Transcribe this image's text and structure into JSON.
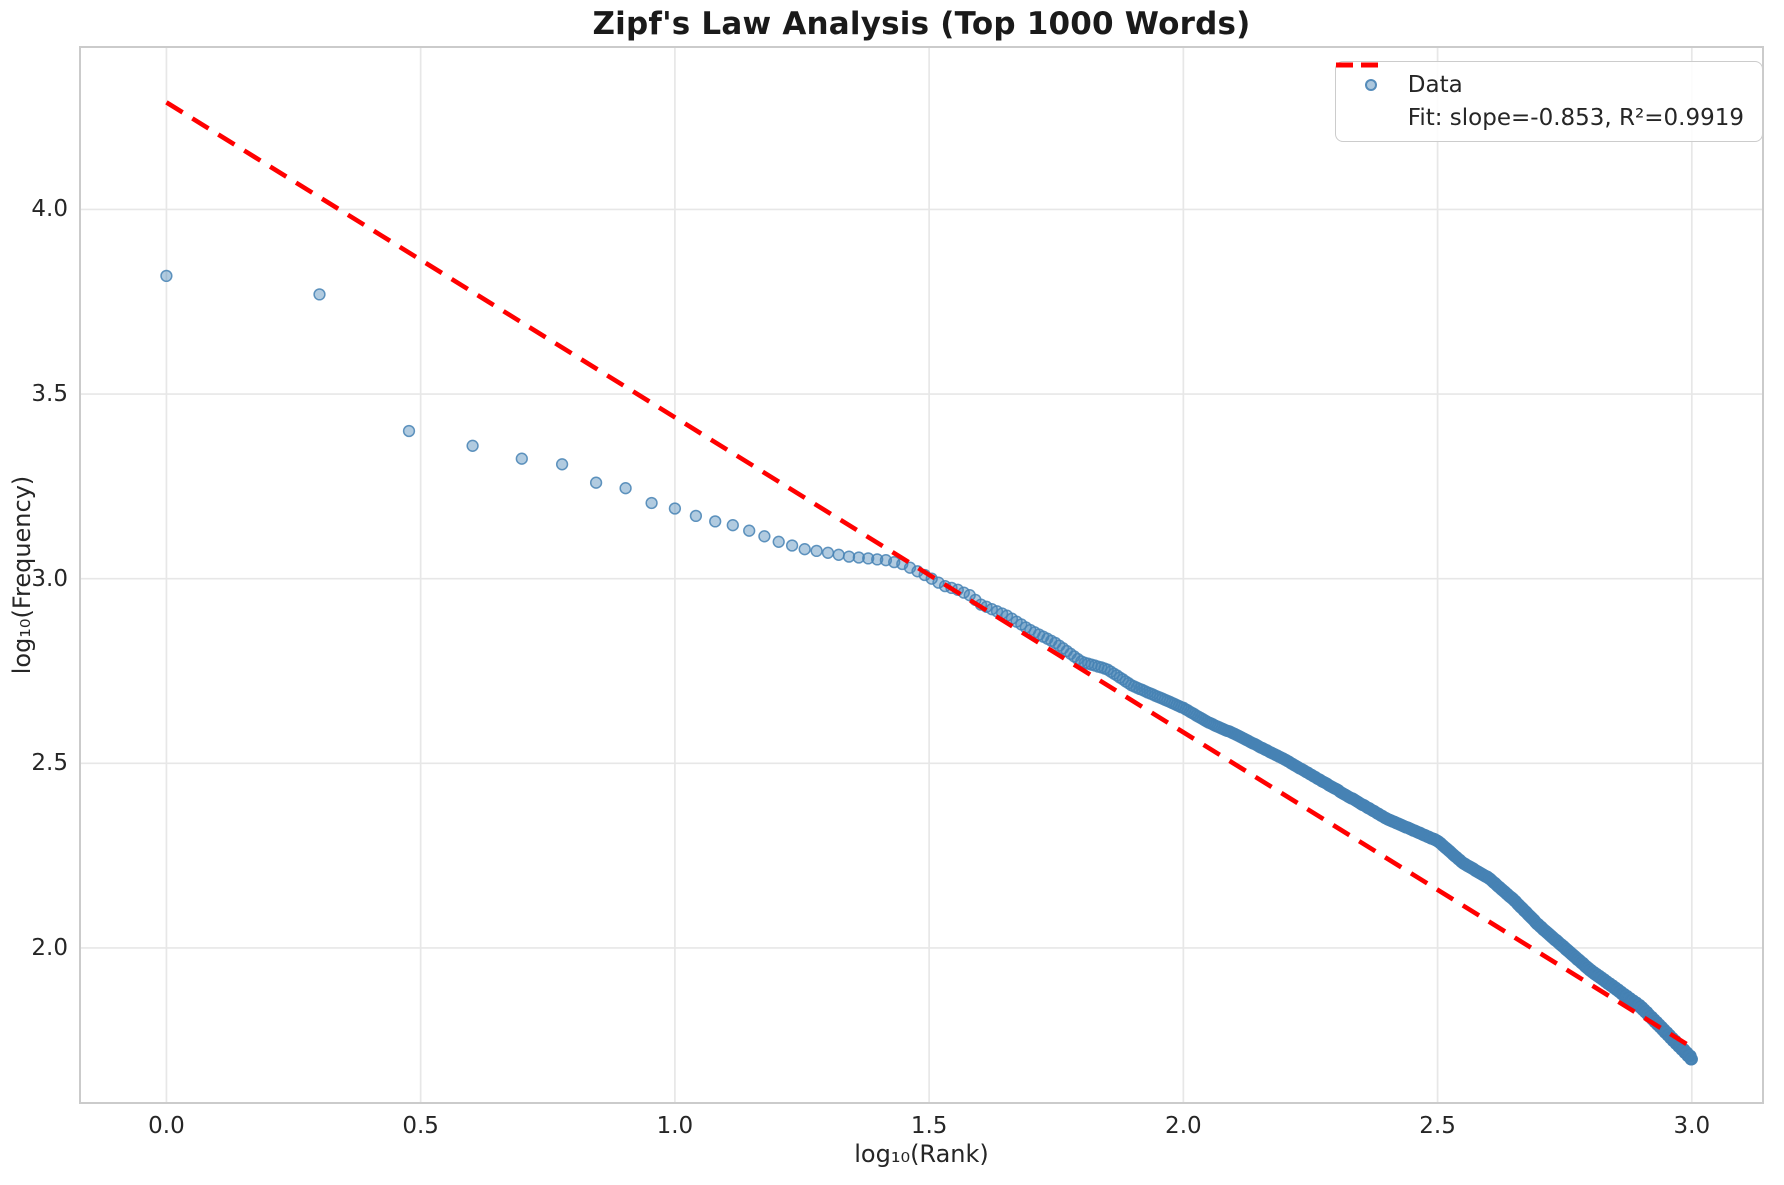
{
  "title": "Zipf's Law Analysis (Top 1000 Words)",
  "legend": {
    "position": "upper right",
    "data_label": "Data",
    "fit_label": "Fit: slope=-0.853, R²=0.9919"
  },
  "colors": {
    "scatter_fill": "#4682B4",
    "fit_line": "#FF0000",
    "grid": "#E7E7E7",
    "spine": "#CBCBCB",
    "text": "#262626",
    "background": "#FFFFFF"
  },
  "chart_data": {
    "type": "scatter",
    "title": "Zipf's Law Analysis (Top 1000 Words)",
    "xlabel": "log₁₀(Rank)",
    "ylabel": "log₁₀(Frequency)",
    "xlim": [
      -0.17,
      3.14
    ],
    "ylim": [
      1.58,
      4.44
    ],
    "xticks": [
      0.0,
      0.5,
      1.0,
      1.5,
      2.0,
      2.5,
      3.0
    ],
    "xtick_labels": [
      "0.0",
      "0.5",
      "1.0",
      "1.5",
      "2.0",
      "2.5",
      "3.0"
    ],
    "yticks": [
      2.0,
      2.5,
      3.0,
      3.5,
      4.0
    ],
    "ytick_labels": [
      "2.0",
      "2.5",
      "3.0",
      "3.5",
      "4.0"
    ],
    "grid": true,
    "legend_position": "upper right",
    "n_points": 1000,
    "series": [
      {
        "name": "Data",
        "kind": "scatter",
        "description": "log10(frequency) vs log10(rank) for top 1000 words; anchor points read from the plot, intermediate ranks follow interpolation of these anchors with integer-frequency quantization",
        "anchors": [
          [
            0.0,
            3.82
          ],
          [
            0.301,
            3.77
          ],
          [
            0.477,
            3.4
          ],
          [
            0.602,
            3.36
          ],
          [
            0.699,
            3.325
          ],
          [
            0.778,
            3.31
          ],
          [
            0.845,
            3.26
          ],
          [
            0.903,
            3.245
          ],
          [
            0.954,
            3.205
          ],
          [
            1.0,
            3.19
          ],
          [
            1.041,
            3.17
          ],
          [
            1.079,
            3.155
          ],
          [
            1.114,
            3.145
          ],
          [
            1.146,
            3.13
          ],
          [
            1.176,
            3.115
          ],
          [
            1.204,
            3.1
          ],
          [
            1.23,
            3.09
          ],
          [
            1.255,
            3.08
          ],
          [
            1.279,
            3.075
          ],
          [
            1.301,
            3.07
          ],
          [
            1.342,
            3.06
          ],
          [
            1.38,
            3.055
          ],
          [
            1.415,
            3.05
          ],
          [
            1.447,
            3.04
          ],
          [
            1.477,
            3.02
          ],
          [
            1.505,
            3.0
          ],
          [
            1.531,
            2.98
          ],
          [
            1.556,
            2.97
          ],
          [
            1.58,
            2.955
          ],
          [
            1.602,
            2.93
          ],
          [
            1.653,
            2.9
          ],
          [
            1.7,
            2.86
          ],
          [
            1.75,
            2.825
          ],
          [
            1.8,
            2.775
          ],
          [
            1.85,
            2.755
          ],
          [
            1.9,
            2.71
          ],
          [
            1.95,
            2.68
          ],
          [
            2.0,
            2.65
          ],
          [
            2.05,
            2.61
          ],
          [
            2.1,
            2.58
          ],
          [
            2.15,
            2.545
          ],
          [
            2.2,
            2.51
          ],
          [
            2.25,
            2.47
          ],
          [
            2.3,
            2.43
          ],
          [
            2.35,
            2.39
          ],
          [
            2.4,
            2.35
          ],
          [
            2.45,
            2.32
          ],
          [
            2.5,
            2.29
          ],
          [
            2.55,
            2.23
          ],
          [
            2.6,
            2.19
          ],
          [
            2.65,
            2.13
          ],
          [
            2.7,
            2.06
          ],
          [
            2.75,
            2.0
          ],
          [
            2.8,
            1.94
          ],
          [
            2.85,
            1.89
          ],
          [
            2.9,
            1.84
          ],
          [
            2.95,
            1.77
          ],
          [
            3.0,
            1.7
          ]
        ]
      },
      {
        "name": "Fit",
        "kind": "line",
        "slope": -0.853,
        "intercept": 4.29,
        "r_squared": 0.9919,
        "x": [
          0.0,
          3.0
        ],
        "y": [
          4.29,
          1.731
        ]
      }
    ]
  }
}
